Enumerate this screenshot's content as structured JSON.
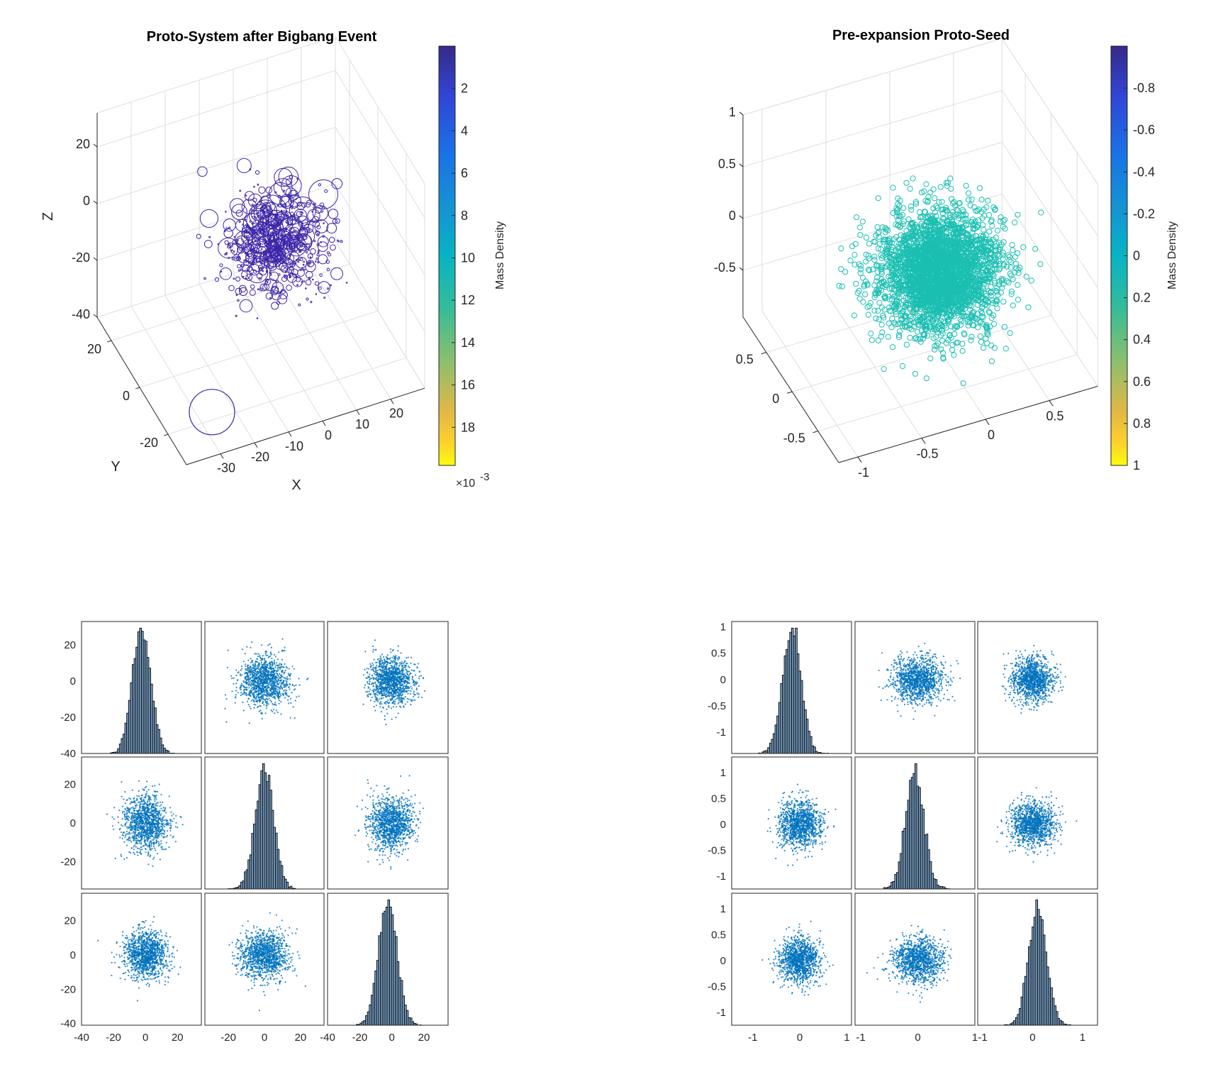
{
  "chart_data": [
    {
      "type": "scatter3d",
      "title": "Proto-System after Bigbang Event",
      "xlabel": "X",
      "ylabel": "Y",
      "zlabel": "Z",
      "xlim": [
        -40,
        30
      ],
      "ylim": [
        -33,
        30
      ],
      "zlim": [
        -40,
        32
      ],
      "xticks": [
        "-30",
        "-20",
        "-10",
        "0",
        "10",
        "20"
      ],
      "yticks": [
        "-20",
        "0",
        "20"
      ],
      "zticks": [
        "-40",
        "-20",
        "0",
        "20"
      ],
      "grid": true,
      "marker": "open circle, size varies",
      "marker_color": "#3d26a8",
      "points": {
        "count": 700,
        "distribution": "gaussian",
        "mean": [
          0,
          0,
          -5
        ],
        "std": [
          7,
          7,
          7
        ]
      },
      "outlier": {
        "x": -35,
        "y": -28,
        "z": -40
      },
      "colorbar": {
        "label": "Mass Density",
        "ticks": [
          "2",
          "4",
          "6",
          "8",
          "10",
          "12",
          "14",
          "16",
          "18"
        ],
        "range": [
          0,
          19.8
        ],
        "multiplier": "×10",
        "multiplier_exp": "-3"
      }
    },
    {
      "type": "scatter3d",
      "title": "Pre-expansion Proto-Seed",
      "xlabel": "",
      "ylabel": "",
      "zlabel": "",
      "xlim": [
        -1.15,
        0.88
      ],
      "ylim": [
        -0.9,
        0.95
      ],
      "zlim": [
        -0.95,
        1
      ],
      "xticks": [
        "-1",
        "-0.5",
        "0",
        "0.5"
      ],
      "yticks": [
        "-0.5",
        "0",
        "0.5"
      ],
      "zticks": [
        "-0.5",
        "0",
        "0.5",
        "1"
      ],
      "grid": true,
      "marker": "open circle",
      "marker_color": "#1bbfb2",
      "points": {
        "count": 3000,
        "distribution": "gaussian",
        "mean": [
          0,
          0,
          -0.2
        ],
        "std": [
          0.22,
          0.22,
          0.22
        ]
      },
      "colorbar": {
        "label": "Mass Density",
        "ticks": [
          "-0.8",
          "-0.6",
          "-0.4",
          "-0.2",
          "0",
          "0.2",
          "0.4",
          "0.6",
          "0.8",
          "1"
        ],
        "range": [
          -1,
          1
        ]
      }
    },
    {
      "type": "scatter-matrix",
      "variables": 3,
      "diagonal": "histogram",
      "marker_color": "#0072bd",
      "bar_color": "#7ea6cc",
      "xlims": [
        [
          -40,
          35
        ],
        [
          -33,
          33
        ],
        [
          -40,
          35
        ]
      ],
      "ylims": [
        [
          -40,
          33
        ],
        [
          -34,
          34
        ],
        [
          -41,
          36
        ]
      ],
      "xticks": [
        [
          "-40",
          "-20",
          "0",
          "20"
        ],
        [
          "-20",
          "0",
          "20"
        ],
        [
          "-40",
          "-20",
          "0",
          "20"
        ]
      ],
      "yticks": [
        [
          "-40",
          "-20",
          "0",
          "20"
        ],
        [
          "-20",
          "0",
          "20"
        ],
        [
          "-40",
          "-20",
          "0",
          "20"
        ]
      ],
      "distribution": {
        "mean": 0,
        "std": 7,
        "points_per_panel": 1200
      }
    },
    {
      "type": "scatter-matrix",
      "variables": 3,
      "diagonal": "histogram",
      "marker_color": "#0072bd",
      "bar_color": "#7ea6cc",
      "xlims": [
        [
          -1.45,
          1.1
        ],
        [
          -1.1,
          1.0
        ],
        [
          -1.1,
          1.3
        ]
      ],
      "ylims": [
        [
          -1.4,
          1.1
        ],
        [
          -1.25,
          1.3
        ],
        [
          -1.25,
          1.3
        ]
      ],
      "xticks": [
        [
          "-1",
          "0",
          "1"
        ],
        [
          "-1",
          "0",
          "1"
        ],
        [
          "-1",
          "0",
          "1"
        ]
      ],
      "yticks": [
        [
          "-1",
          "-0.5",
          "0",
          "0.5",
          "1"
        ],
        [
          "-1",
          "-0.5",
          "0",
          "0.5",
          "1"
        ],
        [
          "-1",
          "-0.5",
          "0",
          "0.5",
          "1"
        ]
      ],
      "distribution": {
        "mean": 0,
        "std": 0.22,
        "points_per_panel": 1200
      }
    }
  ]
}
